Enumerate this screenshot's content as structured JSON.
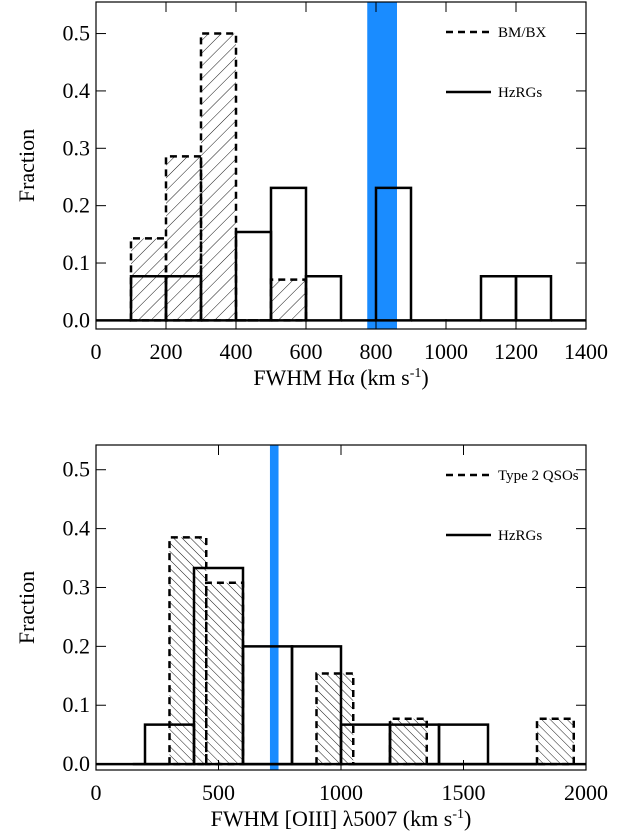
{
  "chart_data": [
    {
      "type": "histogram",
      "xlabel": [
        "FWHM Hα (km s",
        "-1",
        ")"
      ],
      "ylabel": "Fraction",
      "xlim": [
        0,
        1400
      ],
      "ylim": [
        -0.015,
        0.555
      ],
      "xticks": [
        0,
        200,
        400,
        600,
        800,
        1000,
        1200,
        1400
      ],
      "yticks": [
        {
          "value": 0,
          "label": "0.0"
        },
        0.1,
        0.2,
        0.3,
        0.4,
        0.5
      ],
      "legend": "upper right",
      "highlight": {
        "range": [
          775,
          860
        ],
        "color": "#1a8cff"
      },
      "series": [
        {
          "name": "BM/BX",
          "color": "#000000",
          "dashed": true,
          "hatch": "/",
          "bins": [
            100,
            200,
            300,
            400,
            500,
            600
          ],
          "values": [
            0.143,
            0.286,
            0.5,
            0,
            0.071
          ]
        },
        {
          "name": "HzRGs",
          "color": "#000000",
          "dashed": false,
          "bins": [
            0,
            100,
            200,
            300,
            400,
            500,
            600,
            700,
            800,
            900,
            1000,
            1100,
            1200,
            1300,
            1400
          ],
          "values": [
            0,
            0.077,
            0.077,
            0,
            0.154,
            0.231,
            0.077,
            0,
            0.231,
            0,
            0,
            0.077,
            0.077,
            0
          ]
        }
      ]
    },
    {
      "type": "histogram",
      "xlabel": [
        "FWHM [OIII] λ5007 (km s",
        "-1",
        ")"
      ],
      "ylabel": "Fraction",
      "xlim": [
        0,
        2000
      ],
      "ylim": [
        -0.01,
        0.542
      ],
      "xticks": [
        0,
        500,
        1000,
        1500,
        2000
      ],
      "yticks": [
        {
          "value": 0,
          "label": "0.0"
        },
        0.1,
        0.2,
        0.3,
        0.4,
        0.5
      ],
      "legend": "upper right",
      "highlight": {
        "range": [
          710,
          745
        ],
        "color": "#1a8cff"
      },
      "series": [
        {
          "name": "Type 2 QSOs",
          "color": "#000000",
          "dashed": true,
          "hatch": "\\",
          "bins": [
            150,
            300,
            450,
            600,
            750,
            900,
            1050,
            1200,
            1350,
            1500,
            1650,
            1800,
            1950
          ],
          "values": [
            0,
            0.385,
            0.308,
            0,
            0,
            0.154,
            0,
            0.077,
            0,
            0,
            0,
            0.077
          ]
        },
        {
          "name": "HzRGs",
          "color": "#000000",
          "dashed": false,
          "bins": [
            0,
            200,
            400,
            600,
            800,
            1000,
            1200,
            1400,
            1600,
            1800,
            2000
          ],
          "values": [
            0,
            0.067,
            0.333,
            0.2,
            0.2,
            0.067,
            0.067,
            0.067,
            0,
            0
          ]
        }
      ]
    }
  ]
}
